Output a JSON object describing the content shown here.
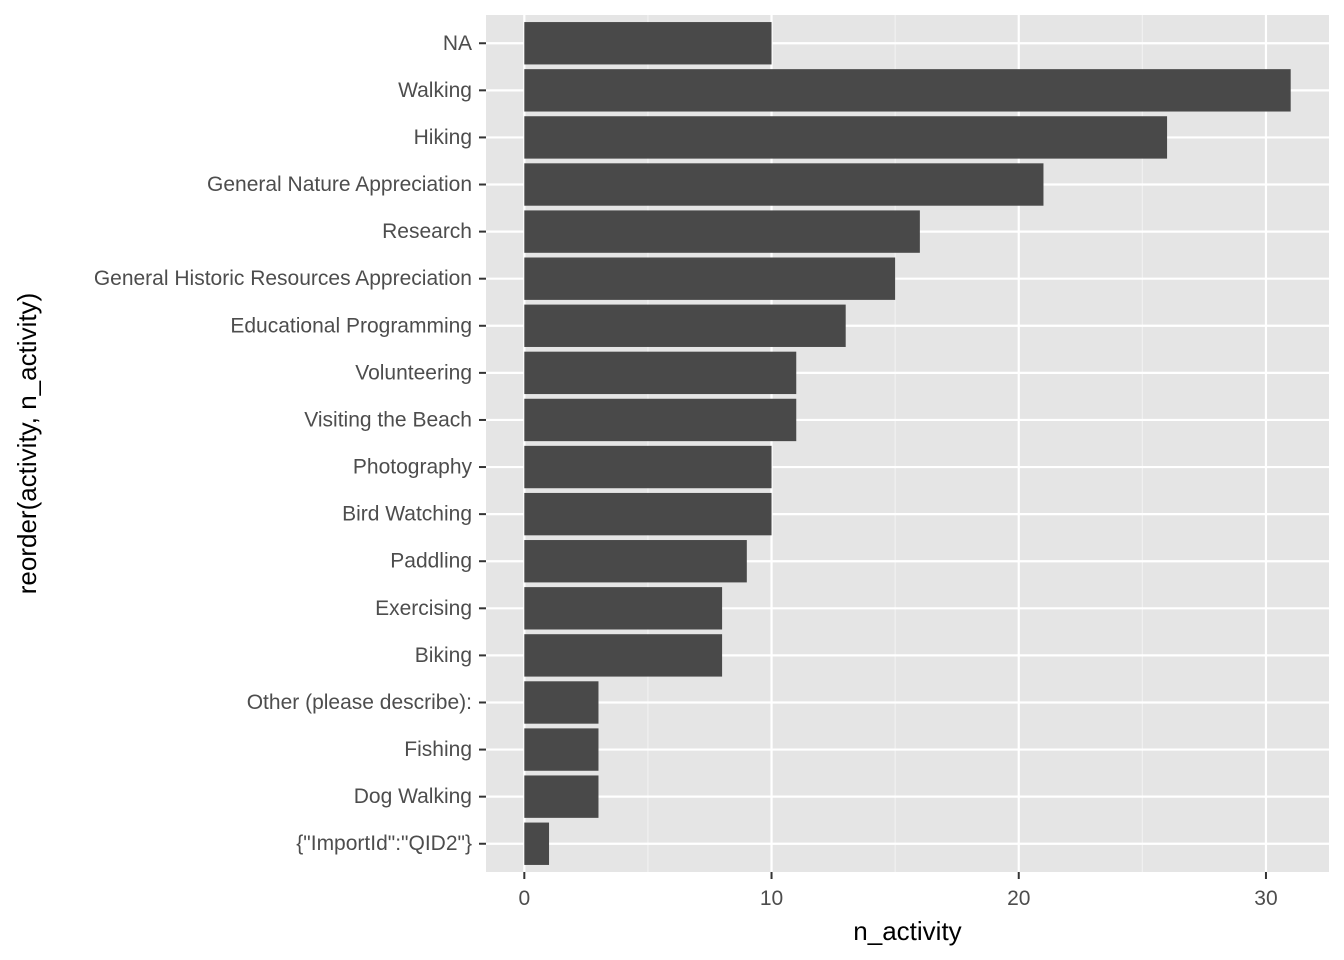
{
  "chart_data": {
    "type": "bar",
    "orientation": "horizontal",
    "categories": [
      "NA",
      "Walking",
      "Hiking",
      "General Nature Appreciation",
      "Research",
      "General Historic Resources Appreciation",
      "Educational Programming",
      "Volunteering",
      "Visiting the Beach",
      "Photography",
      "Bird Watching",
      "Paddling",
      "Exercising",
      "Biking",
      "Other (please describe):",
      "Fishing",
      "Dog Walking",
      "{\"ImportId\":\"QID2\"}"
    ],
    "values": [
      10,
      31,
      26,
      21,
      16,
      15,
      13,
      11,
      11,
      10,
      10,
      9,
      8,
      8,
      3,
      3,
      3,
      1
    ],
    "xlabel": "n_activity",
    "ylabel": "reorder(activity, n_activity)",
    "xlim": [
      -1.55,
      32.55
    ],
    "x_ticks": [
      0,
      10,
      20,
      30
    ],
    "x_tick_labels": [
      "0",
      "10",
      "20",
      "30"
    ],
    "grid": true,
    "colors": {
      "bar": "#494949",
      "panel_background": "#e5e5e5",
      "grid_major": "#ffffff",
      "grid_minor": "#f2f2f2",
      "tick": "#333333",
      "tick_label": "#4d4d4d"
    }
  }
}
